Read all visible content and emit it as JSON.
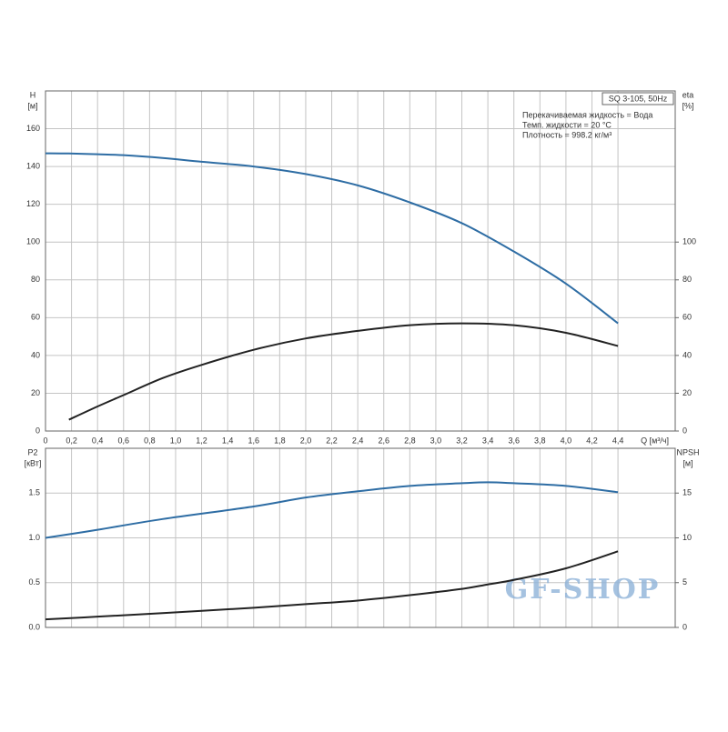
{
  "chart_data": [
    {
      "type": "line",
      "ylabel": "H",
      "yunit": "[м]",
      "y2label": "eta",
      "y2unit": "[%]",
      "xlabel": "Q [м³/ч]",
      "annotations": [
        "SQ 3-105, 50Hz",
        "Перекачиваемая жидкость = Вода",
        "Темп. жидкости = 20 °C",
        "Плотность = 998.2 кг/м³"
      ],
      "x": [
        0,
        0.18,
        0.4,
        0.6,
        0.9,
        1.2,
        1.6,
        2.0,
        2.4,
        2.8,
        3.2,
        3.6,
        4.0,
        4.4
      ],
      "series": [
        {
          "name": "H",
          "color": "#2e6da4",
          "values": [
            147,
            146.9,
            146.5,
            146,
            144.5,
            142.5,
            140,
            136,
            130,
            121,
            110,
            95,
            78,
            57
          ]
        },
        {
          "name": "eta",
          "color": "#222222",
          "axis": "y2",
          "values": [
            null,
            6,
            13,
            19,
            28,
            35,
            43,
            49,
            53,
            56,
            57,
            56,
            52,
            45
          ]
        }
      ],
      "xlim": [
        0,
        4.84
      ],
      "xticks": [
        0,
        {
          "value": 0.2,
          "label": "0,2"
        },
        {
          "value": 0.4,
          "label": "0,4"
        },
        {
          "value": 0.6,
          "label": "0,6"
        },
        {
          "value": 0.8,
          "label": "0,8"
        },
        {
          "value": 1.0,
          "label": "1,0"
        },
        {
          "value": 1.2,
          "label": "1,2"
        },
        {
          "value": 1.4,
          "label": "1,4"
        },
        {
          "value": 1.6,
          "label": "1,6"
        },
        {
          "value": 1.8,
          "label": "1,8"
        },
        {
          "value": 2.0,
          "label": "2,0"
        },
        {
          "value": 2.2,
          "label": "2,2"
        },
        {
          "value": 2.4,
          "label": "2,4"
        },
        {
          "value": 2.6,
          "label": "2,6"
        },
        {
          "value": 2.8,
          "label": "2,8"
        },
        {
          "value": 3.0,
          "label": "3,0"
        },
        {
          "value": 3.2,
          "label": "3,2"
        },
        {
          "value": 3.4,
          "label": "3,4"
        },
        {
          "value": 3.6,
          "label": "3,6"
        },
        {
          "value": 3.8,
          "label": "3,8"
        },
        {
          "value": 4.0,
          "label": "4,0"
        },
        {
          "value": 4.2,
          "label": "4,2"
        },
        {
          "value": 4.4,
          "label": "4,4"
        }
      ],
      "ylim": [
        0,
        180
      ],
      "yticks": [
        0,
        20,
        40,
        60,
        80,
        100,
        120,
        140,
        160
      ],
      "y2lim": [
        0,
        180
      ],
      "y2ticks": [
        0,
        20,
        40,
        60,
        80,
        100
      ],
      "grid": true
    },
    {
      "type": "line",
      "ylabel": "P2",
      "yunit": "[кВт]",
      "y2label": "NPSH",
      "y2unit": "[м]",
      "watermark": "GF-SHOP",
      "x": [
        0,
        0.4,
        0.9,
        1.6,
        2.0,
        2.4,
        2.8,
        3.2,
        3.4,
        3.6,
        4.0,
        4.4
      ],
      "series": [
        {
          "name": "P2",
          "color": "#2e6da4",
          "values": [
            1.0,
            1.09,
            1.21,
            1.35,
            1.45,
            1.52,
            1.58,
            1.61,
            1.62,
            1.61,
            1.58,
            1.51
          ]
        },
        {
          "name": "NPSH",
          "color": "#222222",
          "axis": "y2",
          "values": [
            0.9,
            1.2,
            1.6,
            2.2,
            2.6,
            3.0,
            3.6,
            4.3,
            4.8,
            5.3,
            6.6,
            8.5
          ]
        }
      ],
      "xlim": [
        0,
        4.84
      ],
      "ylim": [
        0,
        2.0
      ],
      "yticks": [
        {
          "value": 0,
          "label": "0.0"
        },
        {
          "value": 0.5,
          "label": "0.5"
        },
        {
          "value": 1.0,
          "label": "1.0"
        },
        {
          "value": 1.5,
          "label": "1.5"
        }
      ],
      "y2lim": [
        0,
        20
      ],
      "y2ticks": [
        0,
        5,
        10,
        15
      ],
      "grid": true
    }
  ]
}
